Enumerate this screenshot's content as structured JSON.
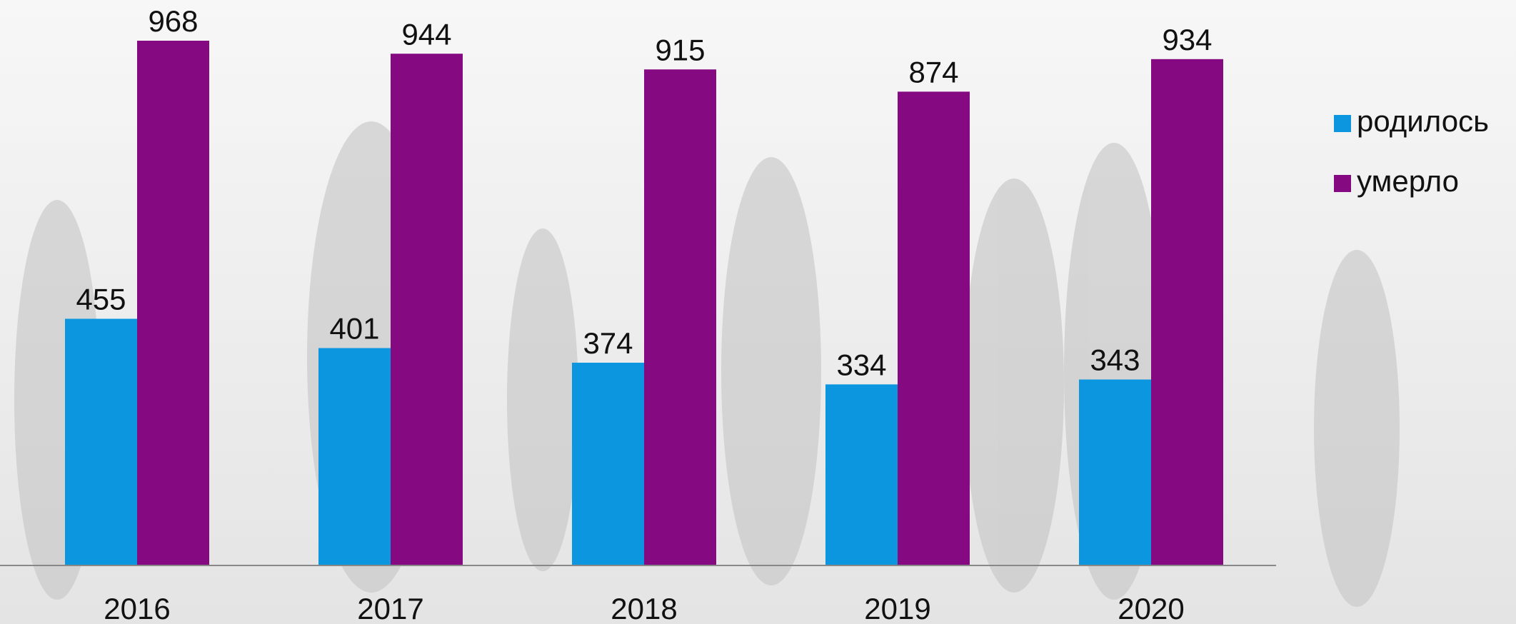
{
  "chart_data": {
    "type": "bar",
    "categories": [
      "2016",
      "2017",
      "2018",
      "2019",
      "2020"
    ],
    "series": [
      {
        "name": "родилось",
        "color": "#0c96e0",
        "values": [
          455,
          401,
          374,
          334,
          343
        ]
      },
      {
        "name": "умерло",
        "color": "#850a82",
        "values": [
          968,
          944,
          915,
          874,
          934
        ]
      }
    ],
    "legend": "right"
  }
}
